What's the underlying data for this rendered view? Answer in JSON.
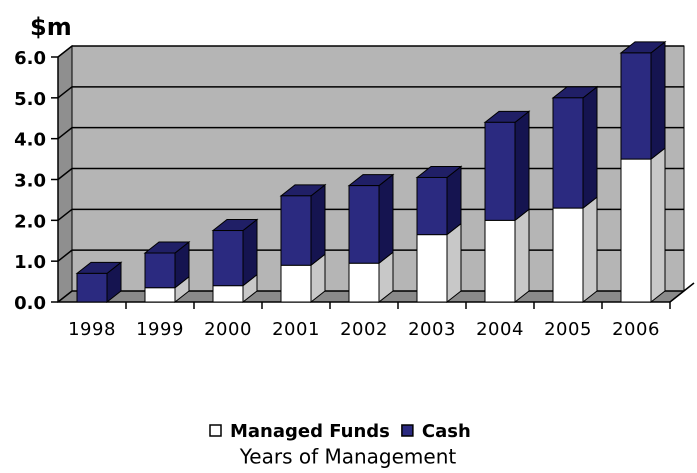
{
  "chart_data": {
    "type": "bar",
    "stacked": true,
    "y_axis_label": "$m",
    "x_axis_label": "Years of Management",
    "categories": [
      "1998",
      "1999",
      "2000",
      "2001",
      "2002",
      "2003",
      "2004",
      "2005",
      "2006"
    ],
    "series": [
      {
        "name": "Managed Funds",
        "color": "#ffffff",
        "values": [
          0,
          0.35,
          0.4,
          0.9,
          0.95,
          1.65,
          2.0,
          2.3,
          3.5
        ]
      },
      {
        "name": "Cash",
        "color": "#2b2a80",
        "values": [
          0.7,
          0.85,
          1.35,
          1.7,
          1.9,
          1.4,
          2.4,
          2.7,
          2.6
        ]
      }
    ],
    "ylim": [
      0,
      6
    ],
    "yticks": [
      {
        "value": 0,
        "label": "0.0"
      },
      {
        "value": 1,
        "label": "1.0"
      },
      {
        "value": 2,
        "label": "2.0"
      },
      {
        "value": 3,
        "label": "3.0"
      },
      {
        "value": 4,
        "label": "4.0"
      },
      {
        "value": 5,
        "label": "5.0"
      },
      {
        "value": 6,
        "label": "6.0"
      }
    ],
    "grid": true,
    "legend": "bottom"
  }
}
